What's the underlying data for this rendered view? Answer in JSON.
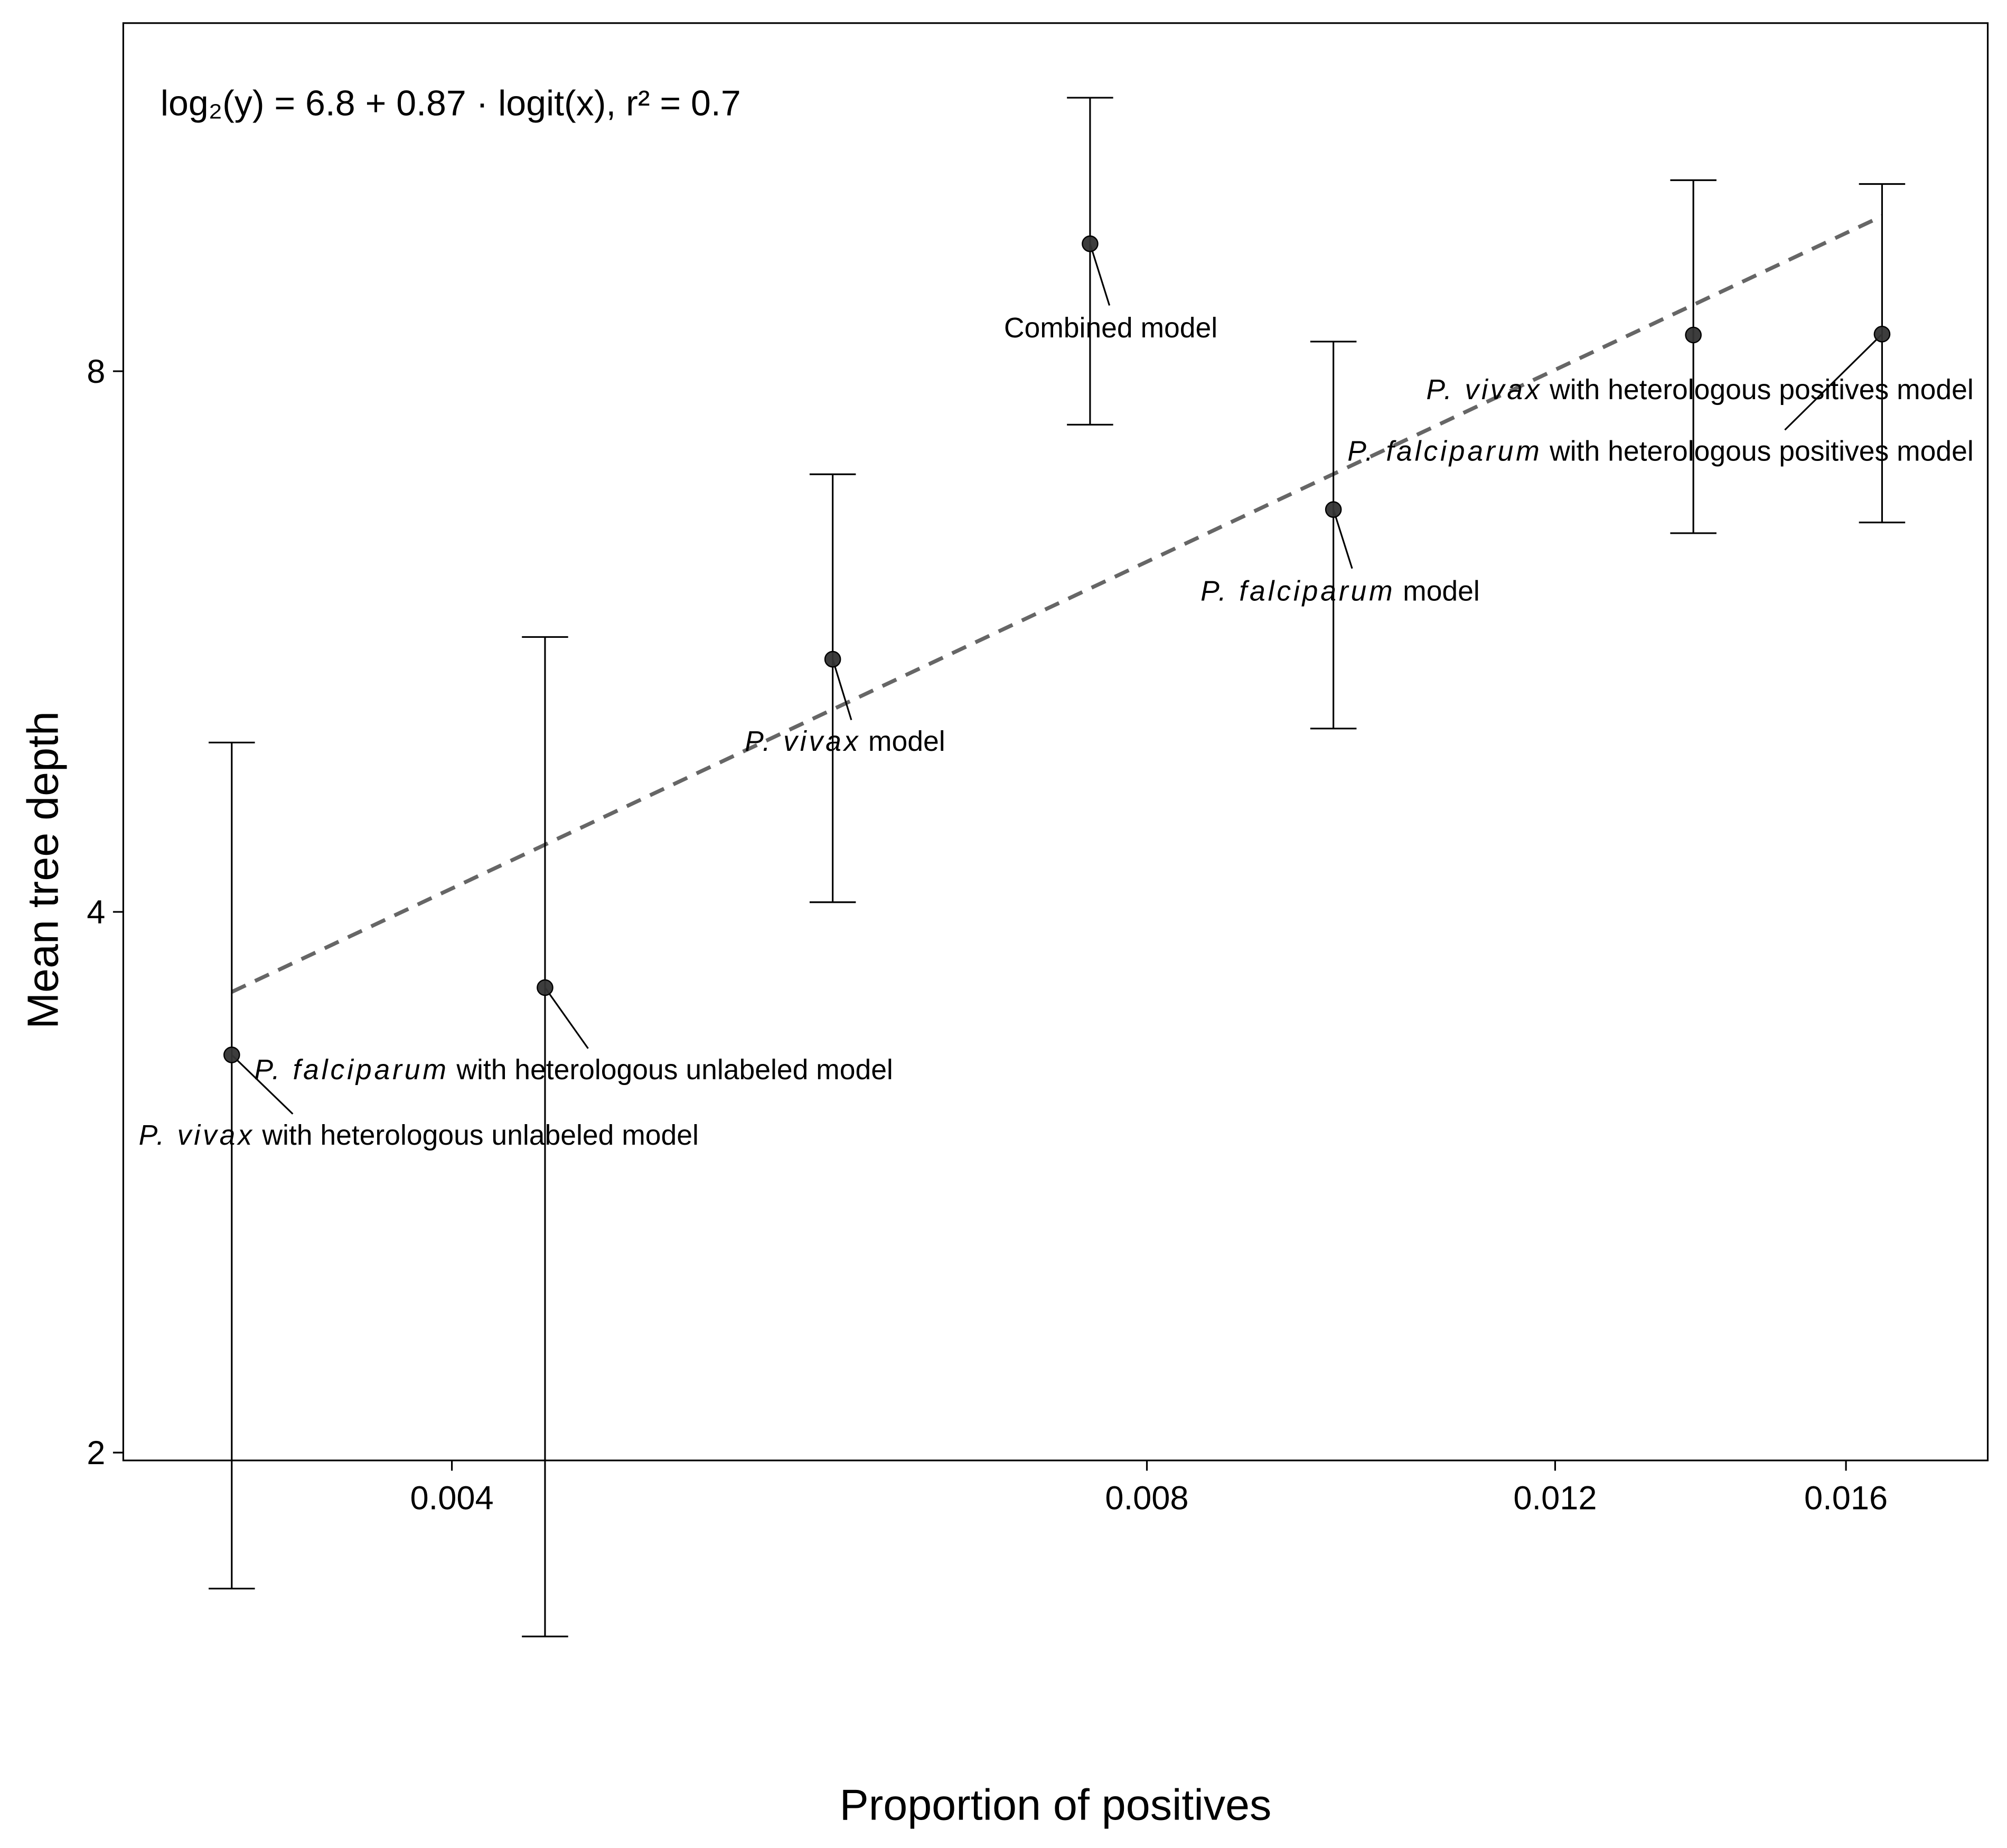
{
  "chart_data": {
    "type": "scatter",
    "equation": "log₂(y) = 6.8 + 0.87 · logit(x),  r² = 0.7",
    "x_label": "Proportion of positives",
    "y_label": "Mean tree depth",
    "xscale": "logit",
    "yscale": "log2",
    "xlim": [
      0.00288,
      0.0184
    ],
    "ylim": [
      1.98,
      12.5
    ],
    "xticks": [
      0.004,
      0.008,
      0.012,
      0.016
    ],
    "yticks": [
      2,
      4,
      8
    ],
    "series": [
      {
        "color": "#333333",
        "x": [
          0.00321,
          0.00439,
          0.00585,
          0.00756,
          0.00963,
          0.01376,
          0.01658
        ],
        "values": [
          3.33,
          3.63,
          5.53,
          9.42,
          6.7,
          8.38,
          8.39
        ],
        "lower": [
          1.68,
          1.58,
          4.05,
          7.47,
          5.06,
          6.5,
          6.59
        ],
        "upper": [
          4.97,
          5.69,
          7.01,
          11.36,
          8.31,
          10.22,
          10.17
        ],
        "labels": [
          [
            "P. vivax",
            "with heterologous unlabeled model"
          ],
          [
            "P. falciparum",
            "with heterologous unlabeled model"
          ],
          [
            "P. vivax",
            "model"
          ],
          [
            "Combined model"
          ],
          [
            "P. falciparum",
            "model"
          ],
          [
            "P. vivax",
            "with heterologous positives model"
          ],
          [
            "P. falciparum",
            "with heterologous positives model"
          ]
        ]
      }
    ],
    "fit": {
      "x": [
        0.00321,
        0.01658
      ],
      "values": [
        3.61,
        9.76
      ],
      "color": "#666666",
      "dashed": true
    }
  }
}
